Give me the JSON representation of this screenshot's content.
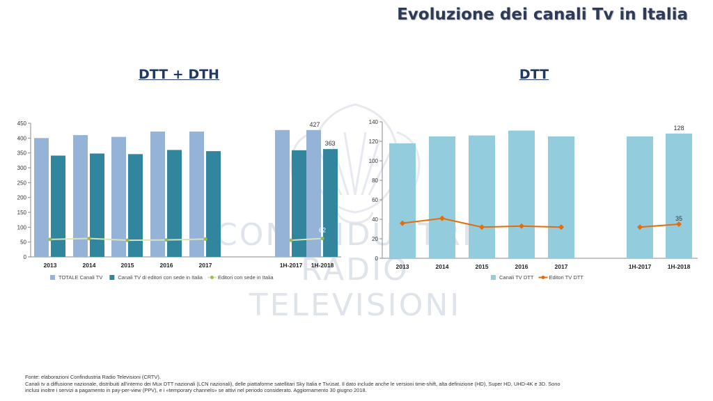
{
  "page_title": "Evoluzione dei canali Tv in Italia",
  "watermark": {
    "line1": "CONFINDUSTRIA",
    "line2": "RADIO TELEVISIONI"
  },
  "colors": {
    "title": "#2f3a55",
    "heading": "#1f3864",
    "light_bar": "#95b3d7",
    "dark_bar": "#31859c",
    "green_line": "#d7e4bd",
    "green_marker": "#9bbb59",
    "orange_line": "#e46c0a",
    "dtt_bar": "#93cddd"
  },
  "chart_data": [
    {
      "type": "bar",
      "heading": "DTT + DTH",
      "categories": [
        "2013",
        "2014",
        "2015",
        "2016",
        "2017",
        "1H-2017",
        "1H-2018"
      ],
      "ylim": [
        0,
        450
      ],
      "yticks": [
        0,
        50,
        100,
        150,
        200,
        250,
        300,
        350,
        400,
        450
      ],
      "series": [
        {
          "name": "TOTALE Canali TV",
          "kind": "bar",
          "color": "#95b3d7",
          "values": [
            400,
            410,
            404,
            422,
            422,
            427,
            427
          ]
        },
        {
          "name": "Canali TV di editori con sede in Italia",
          "kind": "bar",
          "color": "#31859c",
          "values": [
            341,
            348,
            346,
            360,
            356,
            359,
            363
          ]
        },
        {
          "name": "Editori con sede in Italia",
          "kind": "line",
          "color": "#d7e4bd",
          "marker": "#9bbb59",
          "values": [
            59,
            62,
            56,
            57,
            60,
            56,
            62
          ]
        }
      ],
      "data_labels": [
        {
          "series": 0,
          "index": 6,
          "text": "427",
          "style": "dark"
        },
        {
          "series": 1,
          "index": 6,
          "text": "363",
          "style": "dark"
        },
        {
          "series": 2,
          "index": 6,
          "text": "62",
          "style": "light"
        }
      ],
      "legend": "bottom"
    },
    {
      "type": "bar",
      "heading": "DTT",
      "categories": [
        "2013",
        "2014",
        "2015",
        "2016",
        "2017",
        "1H-2017",
        "1H-2018"
      ],
      "ylim": [
        0,
        140
      ],
      "yticks": [
        0,
        20,
        40,
        60,
        80,
        100,
        120,
        140
      ],
      "series": [
        {
          "name": "Canali TV DTT",
          "kind": "bar",
          "color": "#93cddd",
          "values": [
            118,
            125,
            126,
            131,
            125,
            125,
            128
          ]
        },
        {
          "name": "Editori TV DTT",
          "kind": "line",
          "color": "#e46c0a",
          "marker": "#e46c0a",
          "values": [
            36,
            41,
            32,
            33,
            32,
            32,
            35
          ]
        }
      ],
      "data_labels": [
        {
          "series": 0,
          "index": 6,
          "text": "128",
          "style": "dark"
        },
        {
          "series": 1,
          "index": 6,
          "text": "35",
          "style": "dark"
        }
      ],
      "legend": "bottom"
    }
  ],
  "footer": {
    "line1": "Fonte: elaborazioni Confindustria Radio Televisioni (CRTV).",
    "line2": "Canali tv a diffusione nazionale, distribuiti all'interno dei Mux DTT nazionali (LCN nazionali), delle piattaforme satellitari Sky Italia e Tivùsat. Il dato include anche le versioni time-shift, alta definizione (HD), Super HD, UHD-4K e 3D. Sono",
    "line3": "inclusi inoltre i servizi a pagamento in pay-per-view (PPV), e i «temporary channels» se attivi nel periodo considerato. Aggiornamento 30 giugno 2018."
  }
}
